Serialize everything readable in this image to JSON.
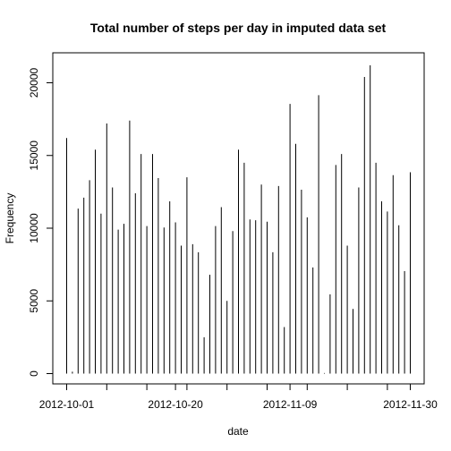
{
  "chart_data": {
    "type": "bar",
    "title": "Total number of steps per day in imputed data set",
    "xlabel": "date",
    "ylabel": "Frequency",
    "x_start": "2012-10-01",
    "x_end": "2012-11-30",
    "x_ticks": [
      "2012-10-01",
      "2012-10-20",
      "2012-11-09",
      "2012-11-30"
    ],
    "y_ticks": [
      0,
      5000,
      10000,
      15000,
      20000
    ],
    "ylim": [
      0,
      21200
    ],
    "categories": [
      "2012-10-01",
      "2012-10-02",
      "2012-10-03",
      "2012-10-04",
      "2012-10-05",
      "2012-10-06",
      "2012-10-07",
      "2012-10-08",
      "2012-10-09",
      "2012-10-10",
      "2012-10-11",
      "2012-10-12",
      "2012-10-13",
      "2012-10-14",
      "2012-10-15",
      "2012-10-16",
      "2012-10-17",
      "2012-10-18",
      "2012-10-19",
      "2012-10-20",
      "2012-10-21",
      "2012-10-22",
      "2012-10-23",
      "2012-10-24",
      "2012-10-25",
      "2012-10-26",
      "2012-10-27",
      "2012-10-28",
      "2012-10-29",
      "2012-10-30",
      "2012-10-31",
      "2012-11-01",
      "2012-11-02",
      "2012-11-03",
      "2012-11-04",
      "2012-11-05",
      "2012-11-06",
      "2012-11-07",
      "2012-11-08",
      "2012-11-09",
      "2012-11-10",
      "2012-11-11",
      "2012-11-12",
      "2012-11-13",
      "2012-11-14",
      "2012-11-15",
      "2012-11-16",
      "2012-11-17",
      "2012-11-18",
      "2012-11-19",
      "2012-11-20",
      "2012-11-21",
      "2012-11-22",
      "2012-11-23",
      "2012-11-24",
      "2012-11-25",
      "2012-11-26",
      "2012-11-27",
      "2012-11-28",
      "2012-11-29",
      "2012-11-30"
    ],
    "values": [
      16200,
      130,
      11350,
      12100,
      13300,
      15400,
      11000,
      17200,
      12800,
      9900,
      10300,
      17400,
      12400,
      15100,
      10150,
      15100,
      13450,
      10050,
      11850,
      10400,
      8800,
      13500,
      8900,
      8350,
      2500,
      6800,
      10150,
      11450,
      5000,
      9800,
      15400,
      14500,
      10600,
      10550,
      13000,
      10450,
      8350,
      12900,
      3200,
      18550,
      15800,
      12650,
      10750,
      7300,
      19150,
      40,
      5450,
      14350,
      15100,
      8800,
      4450,
      12800,
      20400,
      21200,
      14500,
      11850,
      11150,
      13650,
      10200,
      7050,
      13850
    ]
  }
}
